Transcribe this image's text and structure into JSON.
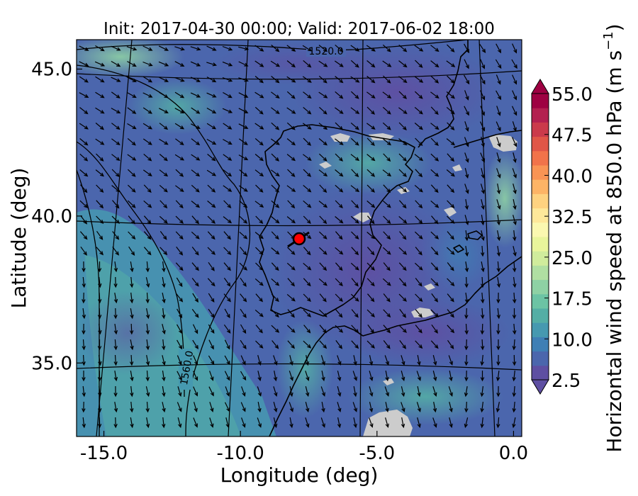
{
  "chart_data": {
    "type": "heatmap",
    "title": "Init: 2017-04-30 00:00; Valid: 2017-06-02 18:00",
    "xlabel": "Longitude (deg)",
    "ylabel": "Latitude (deg)",
    "xlim": [
      -16.0,
      0.3
    ],
    "ylim": [
      32.5,
      46.0
    ],
    "x_ticks": [
      "-15.0",
      "-10.0",
      "-5.0",
      "0.0"
    ],
    "x_tick_values": [
      -15.0,
      -10.0,
      -5.0,
      0.0
    ],
    "y_ticks": [
      "35.0",
      "40.0",
      "45.0"
    ],
    "y_tick_values": [
      35.0,
      40.0,
      45.0
    ],
    "colorbar": {
      "label": "Horizontal wind speed at 850.0 hPa (m s$^{-1}$)",
      "label_main": "Horizontal wind speed at 850.0 hPa (m s",
      "label_sup": "−1",
      "label_end": ")",
      "min": 2.5,
      "max": 55.0,
      "tick_labels": [
        "55.0",
        "47.5",
        "40.0",
        "32.5",
        "25.0",
        "17.5",
        "10.0",
        "2.5"
      ],
      "tick_values": [
        55.0,
        47.5,
        40.0,
        32.5,
        25.0,
        17.5,
        10.0,
        2.5
      ],
      "extend": "both",
      "colors": [
        "#5e4fa2",
        "#4b66ad",
        "#3f7fb5",
        "#4699b0",
        "#54aea5",
        "#6cc3a4",
        "#8ed1a4",
        "#b0dfa2",
        "#d0ec9c",
        "#e9f59b",
        "#fbf8b0",
        "#fee89a",
        "#fed280",
        "#fdb466",
        "#f99454",
        "#f1734a",
        "#e05647",
        "#cb3a4b",
        "#b32050",
        "#9e0142"
      ]
    },
    "contour_labels": [
      "1520.0",
      "1560.0"
    ],
    "marker": {
      "lon": -7.6,
      "lat": 39.3,
      "color": "#ff0000"
    }
  }
}
